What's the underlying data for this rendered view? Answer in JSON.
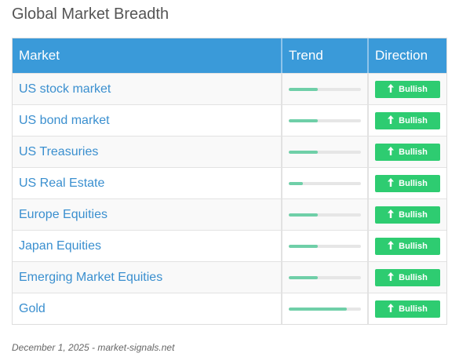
{
  "title": "Global Market Breadth",
  "table": {
    "headers": [
      "Market",
      "Trend",
      "Direction"
    ],
    "rows": [
      {
        "market": "US stock market",
        "trend": 0.4,
        "direction": "Bullish"
      },
      {
        "market": "US bond market",
        "trend": 0.4,
        "direction": "Bullish"
      },
      {
        "market": "US Treasuries",
        "trend": 0.4,
        "direction": "Bullish"
      },
      {
        "market": "US Real Estate",
        "trend": 0.2,
        "direction": "Bullish"
      },
      {
        "market": "Europe Equities",
        "trend": 0.4,
        "direction": "Bullish"
      },
      {
        "market": "Japan Equities",
        "trend": 0.4,
        "direction": "Bullish"
      },
      {
        "market": "Emerging Market Equities",
        "trend": 0.4,
        "direction": "Bullish"
      },
      {
        "market": "Gold",
        "trend": 0.8,
        "direction": "Bullish"
      }
    ]
  },
  "direction_icon": "up-arrow-icon",
  "colors": {
    "header": "#3a9ad9",
    "bullish": "#2ecc71",
    "trend_fill": "#6fcfa8",
    "market_text": "#3a8fcf"
  },
  "footer": "December 1, 2025 - market-signals.net"
}
